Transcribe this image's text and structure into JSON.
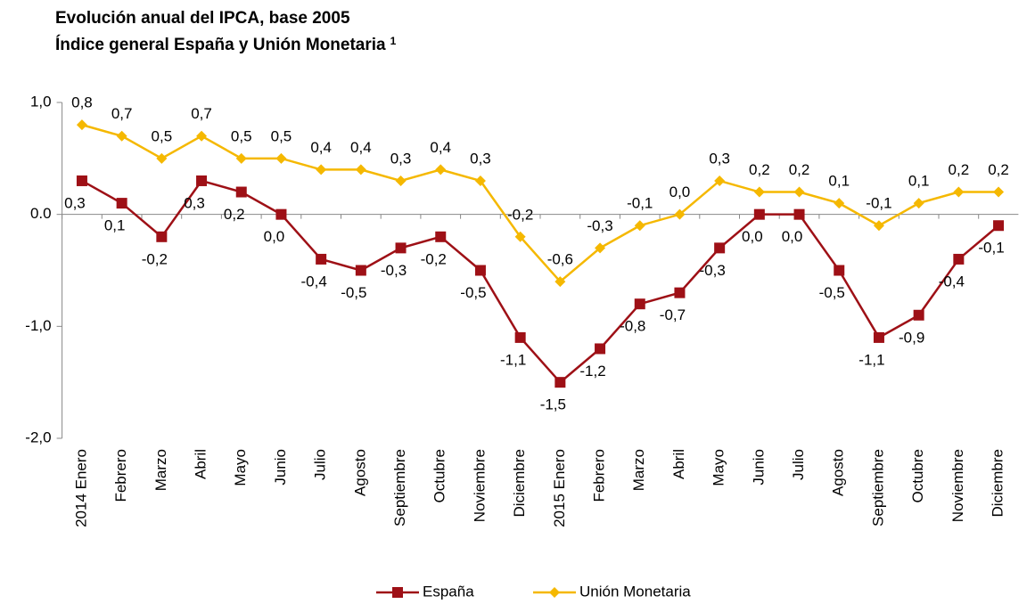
{
  "chart_data": {
    "type": "line",
    "title": "Evolución anual del IPCA, base 2005",
    "subtitle": "Índice general España y Unión Monetaria",
    "subtitle_note": "1",
    "categories": [
      "2014 Enero",
      "Febrero",
      "Marzo",
      "Abril",
      "Mayo",
      "Junio",
      "Julio",
      "Agosto",
      "Septiembre",
      "Octubre",
      "Noviembre",
      "Diciembre",
      "2015 Enero",
      "Febrero",
      "Marzo",
      "Abril",
      "Mayo",
      "Junio",
      "Julio",
      "Agosto",
      "Septiembre",
      "Octubre",
      "Noviembre",
      "Diciembre"
    ],
    "series": [
      {
        "name": "España",
        "color": "#9e1016",
        "marker": "square",
        "values": [
          0.3,
          0.1,
          -0.2,
          0.3,
          0.2,
          0.0,
          -0.4,
          -0.5,
          -0.3,
          -0.2,
          -0.5,
          -1.1,
          -1.5,
          -1.2,
          -0.8,
          -0.7,
          -0.3,
          0.0,
          0.0,
          -0.5,
          -1.1,
          -0.9,
          -0.4,
          -0.1
        ],
        "value_labels": [
          "0,3",
          "0,1",
          "-0,2",
          "0,3",
          "0,2",
          "0,0",
          "-0,4",
          "-0,5",
          "-0,3",
          "-0,2",
          "-0,5",
          "-1,1",
          "-1,5",
          "-1,2",
          "-0,8",
          "-0,7",
          "-0,3",
          "0,0",
          "0,0",
          "-0,5",
          "-1,1",
          "-0,9",
          "-0,4",
          "-0,1"
        ]
      },
      {
        "name": "Unión Monetaria",
        "color": "#f5b800",
        "marker": "diamond",
        "values": [
          0.8,
          0.7,
          0.5,
          0.7,
          0.5,
          0.5,
          0.4,
          0.4,
          0.3,
          0.4,
          0.3,
          -0.2,
          -0.6,
          -0.3,
          -0.1,
          0.0,
          0.3,
          0.2,
          0.2,
          0.1,
          -0.1,
          0.1,
          0.2,
          0.2
        ],
        "value_labels": [
          "0,8",
          "0,7",
          "0,5",
          "0,7",
          "0,5",
          "0,5",
          "0,4",
          "0,4",
          "0,3",
          "0,4",
          "0,3",
          "-0,2",
          "-0,6",
          "-0,3",
          "-0,1",
          "0,0",
          "0,3",
          "0,2",
          "0,2",
          "0,1",
          "-0,1",
          "0,1",
          "0,2",
          "0,2"
        ]
      }
    ],
    "ylim": [
      -2.0,
      1.0
    ],
    "yticks": [
      {
        "value": -2.0,
        "label": "-2,0"
      },
      {
        "value": -1.0,
        "label": "-1,0"
      },
      {
        "value": 0,
        "label": "0.0"
      },
      {
        "value": 1.0,
        "label": "1,0"
      }
    ],
    "legend": "bottom"
  }
}
